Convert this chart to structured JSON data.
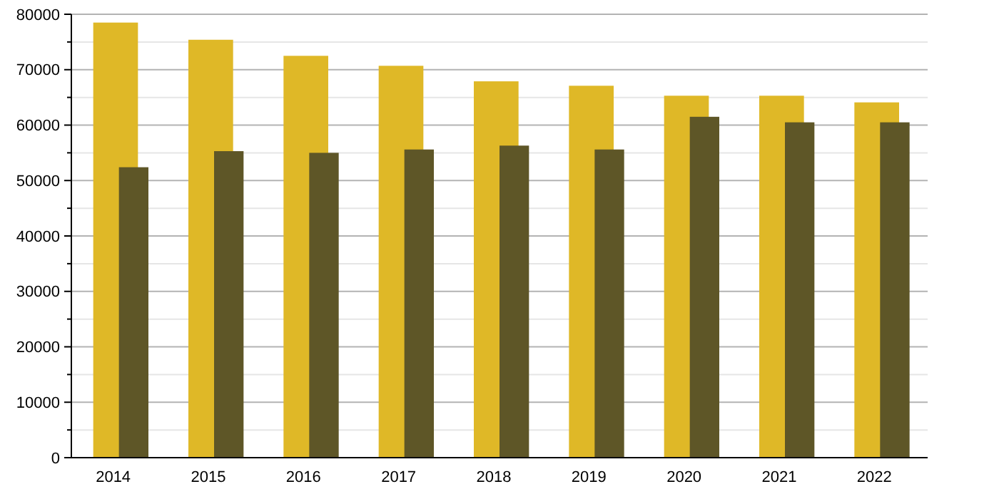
{
  "chart_data": {
    "type": "bar",
    "categories": [
      "2014",
      "2015",
      "2016",
      "2017",
      "2018",
      "2019",
      "2020",
      "2021",
      "2022"
    ],
    "series": [
      {
        "color": "#dfb827",
        "values": [
          78500,
          75400,
          72500,
          70700,
          67900,
          67100,
          65300,
          65300,
          64100
        ]
      },
      {
        "color": "#5e5627",
        "values": [
          52400,
          55300,
          55000,
          55600,
          56300,
          55600,
          61500,
          60500,
          60500
        ]
      }
    ],
    "ylim": [
      0,
      80000
    ],
    "yticks": [
      0,
      {
        "value": 5000,
        "label": null
      },
      10000,
      {
        "value": 15000,
        "label": null
      },
      20000,
      {
        "value": 25000,
        "label": null
      },
      30000,
      {
        "value": 35000,
        "label": null
      },
      40000,
      {
        "value": 45000,
        "label": null
      },
      50000,
      {
        "value": 55000,
        "label": null
      },
      60000,
      {
        "value": 65000,
        "label": null
      },
      70000,
      {
        "value": 75000,
        "label": null
      },
      80000
    ],
    "grid": true
  }
}
